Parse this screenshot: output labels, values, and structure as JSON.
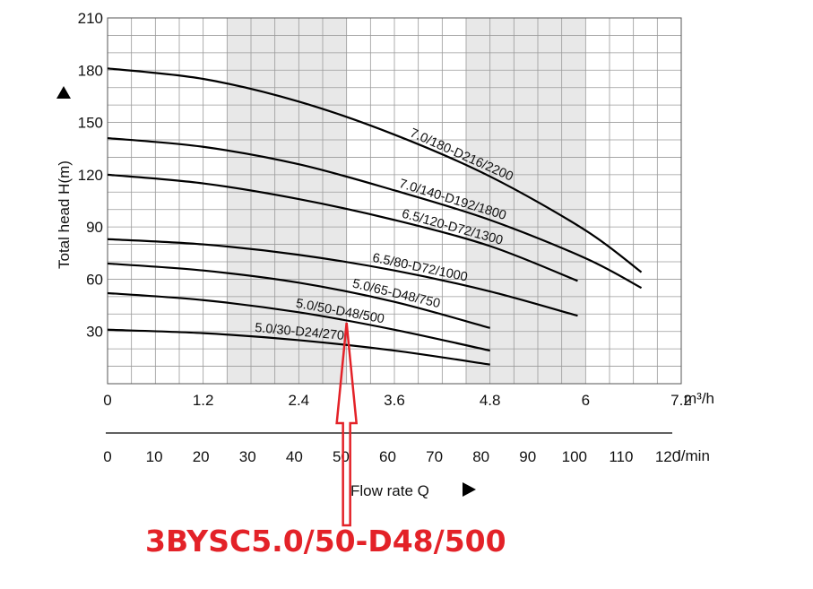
{
  "chart_data": {
    "type": "line",
    "xlabel_unit_top": "m³/h",
    "xlabel_unit_bottom": "l/min",
    "xlabel": "Flow rate Q",
    "ylabel": "Total head H(m)",
    "xlim": [
      0,
      7.2
    ],
    "ylim": [
      0,
      210
    ],
    "x_ticks_m3h": [
      "0",
      "1.2",
      "2.4",
      "3.6",
      "4.8",
      "6",
      "7.2"
    ],
    "x_ticks_lmin": [
      "0",
      "10",
      "20",
      "30",
      "40",
      "50",
      "60",
      "70",
      "80",
      "90",
      "100",
      "110",
      "120"
    ],
    "y_ticks": [
      "30",
      "60",
      "90",
      "120",
      "150",
      "180",
      "210"
    ],
    "grid": true,
    "shaded_bands_x": [
      [
        1.5,
        3.0
      ],
      [
        4.5,
        6.0
      ]
    ],
    "series": [
      {
        "name": "7.0/180-D216/2200",
        "x": [
          0,
          1.2,
          2.4,
          3.6,
          4.8,
          6.0,
          6.7
        ],
        "y": [
          181,
          175,
          162,
          143,
          119,
          88,
          64
        ]
      },
      {
        "name": "7.0/140-D192/1800",
        "x": [
          0,
          1.2,
          2.4,
          3.6,
          4.8,
          6.0,
          6.7
        ],
        "y": [
          141,
          136,
          126,
          111,
          94,
          72,
          55
        ]
      },
      {
        "name": "6.5/120-D72/1300",
        "x": [
          0,
          1.2,
          2.4,
          3.6,
          4.8,
          5.9
        ],
        "y": [
          120,
          115,
          106,
          94,
          79,
          59
        ]
      },
      {
        "name": "6.5/80-D72/1000",
        "x": [
          0,
          1.2,
          2.4,
          3.6,
          4.8,
          5.9
        ],
        "y": [
          83,
          80,
          74,
          65,
          53,
          39
        ]
      },
      {
        "name": "5.0/65-D48/750",
        "x": [
          0,
          1.2,
          2.4,
          3.6,
          4.8
        ],
        "y": [
          69,
          65,
          58,
          47,
          32
        ]
      },
      {
        "name": "5.0/50-D48/500",
        "x": [
          0,
          1.2,
          2.4,
          3.6,
          4.8
        ],
        "y": [
          52,
          48,
          41,
          31,
          19
        ]
      },
      {
        "name": "5.0/30-D24/270",
        "x": [
          0,
          1.2,
          2.4,
          3.6,
          4.8
        ],
        "y": [
          31,
          29,
          25,
          19,
          11
        ]
      }
    ],
    "annotation": {
      "target_series": "5.0/50-D48/500",
      "x": 3.0,
      "color": "#e32228"
    }
  },
  "highlight_text": "3BYSC5.0/50-D48/500",
  "highlight_color": "#e32228",
  "flow_arrow_icon": "triangle-right-icon",
  "head_arrow_icon": "triangle-up-icon"
}
